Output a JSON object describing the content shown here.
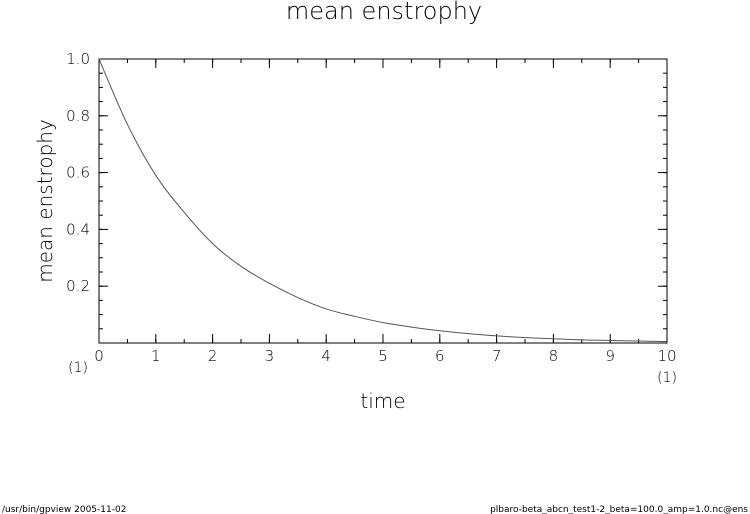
{
  "chart_data": {
    "type": "line",
    "title": "mean enstrophy",
    "xlabel": "time",
    "ylabel": "mean enstrophy",
    "x_unit_left": "(1)",
    "x_unit_right": "(1)",
    "xlim": [
      0,
      10
    ],
    "ylim": [
      0,
      1
    ],
    "x_ticks": [
      0,
      1,
      2,
      3,
      4,
      5,
      6,
      7,
      8,
      9,
      10
    ],
    "y_ticks": [
      0.2,
      0.4,
      0.6,
      0.8,
      1.0
    ],
    "y_tick_labels": [
      "0.2",
      "0.4",
      "0.6",
      "0.8",
      "1.0"
    ],
    "grid": false,
    "series": [
      {
        "x": [
          0,
          0.5,
          1,
          1.5,
          2,
          2.5,
          3,
          3.5,
          4,
          4.5,
          5,
          5.5,
          6,
          6.5,
          7,
          7.5,
          8,
          8.5,
          9,
          9.5,
          10
        ],
        "values": [
          1.0,
          0.77,
          0.59,
          0.46,
          0.35,
          0.27,
          0.21,
          0.16,
          0.12,
          0.094,
          0.072,
          0.056,
          0.043,
          0.033,
          0.025,
          0.019,
          0.015,
          0.011,
          0.009,
          0.007,
          0.005
        ]
      }
    ]
  },
  "footer": {
    "left": "/usr/bin/gpview   2005-11-02",
    "right": "plbaro-beta_abcn_test1-2_beta=100.0_amp=1.0.nc@ens"
  }
}
